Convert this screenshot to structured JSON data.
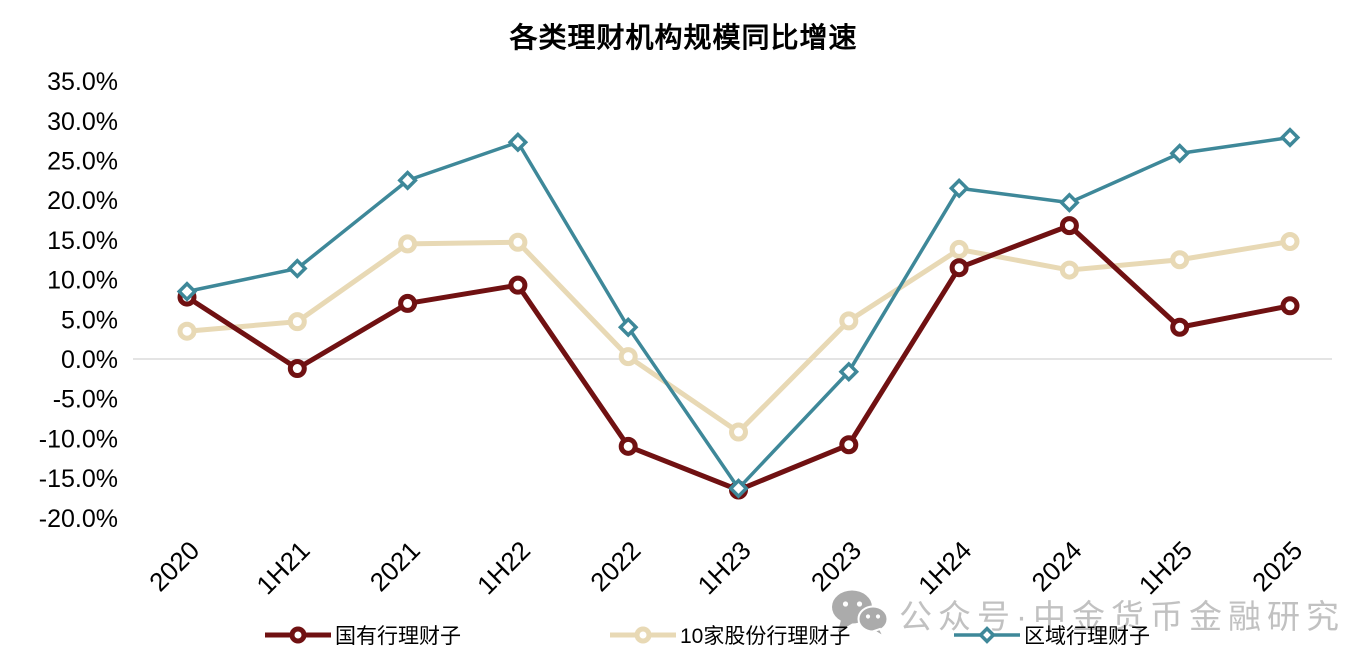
{
  "page": {
    "background": "#FFFFFF"
  },
  "chart_data": {
    "type": "line",
    "title": "各类理财机构规模同比增速",
    "categories": [
      "2020",
      "1H21",
      "2021",
      "1H22",
      "2022",
      "1H23",
      "2023",
      "1H24",
      "2024",
      "1H25",
      "2025"
    ],
    "series": [
      {
        "name": "国有行理财子",
        "color": "#701112",
        "marker": "circle",
        "line_width": 5,
        "values": [
          7.8,
          -1.2,
          7.0,
          9.3,
          -11.0,
          -16.5,
          -10.8,
          11.5,
          16.8,
          4.0,
          6.7
        ]
      },
      {
        "name": "10家股份行理财子",
        "color": "#E8D9B5",
        "marker": "circle",
        "line_width": 5,
        "values": [
          3.5,
          4.7,
          14.5,
          14.7,
          0.3,
          -9.2,
          4.8,
          13.8,
          11.2,
          12.5,
          14.8
        ]
      },
      {
        "name": "区域行理财子",
        "color": "#3E8899",
        "marker": "diamond",
        "line_width": 3.5,
        "values": [
          8.5,
          11.4,
          22.5,
          27.3,
          4.0,
          -16.3,
          -1.6,
          21.5,
          19.7,
          25.9,
          27.9
        ]
      }
    ],
    "y_ticks": [
      {
        "label": "35.0%",
        "value": 35
      },
      {
        "label": "30.0%",
        "value": 30
      },
      {
        "label": "25.0%",
        "value": 25
      },
      {
        "label": "20.0%",
        "value": 20
      },
      {
        "label": "15.0%",
        "value": 15
      },
      {
        "label": "10.0%",
        "value": 10
      },
      {
        "label": "5.0%",
        "value": 5
      },
      {
        "label": "0.0%",
        "value": 0
      },
      {
        "label": "-5.0%",
        "value": -5
      },
      {
        "label": "-10.0%",
        "value": -10
      },
      {
        "label": "-15.0%",
        "value": -15
      },
      {
        "label": "-20.0%",
        "value": -20
      }
    ],
    "ylim": [
      -20,
      35
    ],
    "xlabel_rotation": -45,
    "grid": "zero-line-only",
    "zero_line_color": "#DCDCDC",
    "legend_position": "bottom"
  },
  "watermark": {
    "text": "公众号·中金货币金融研究",
    "icon": "wechat-icon",
    "color": "#C1C1C1"
  }
}
